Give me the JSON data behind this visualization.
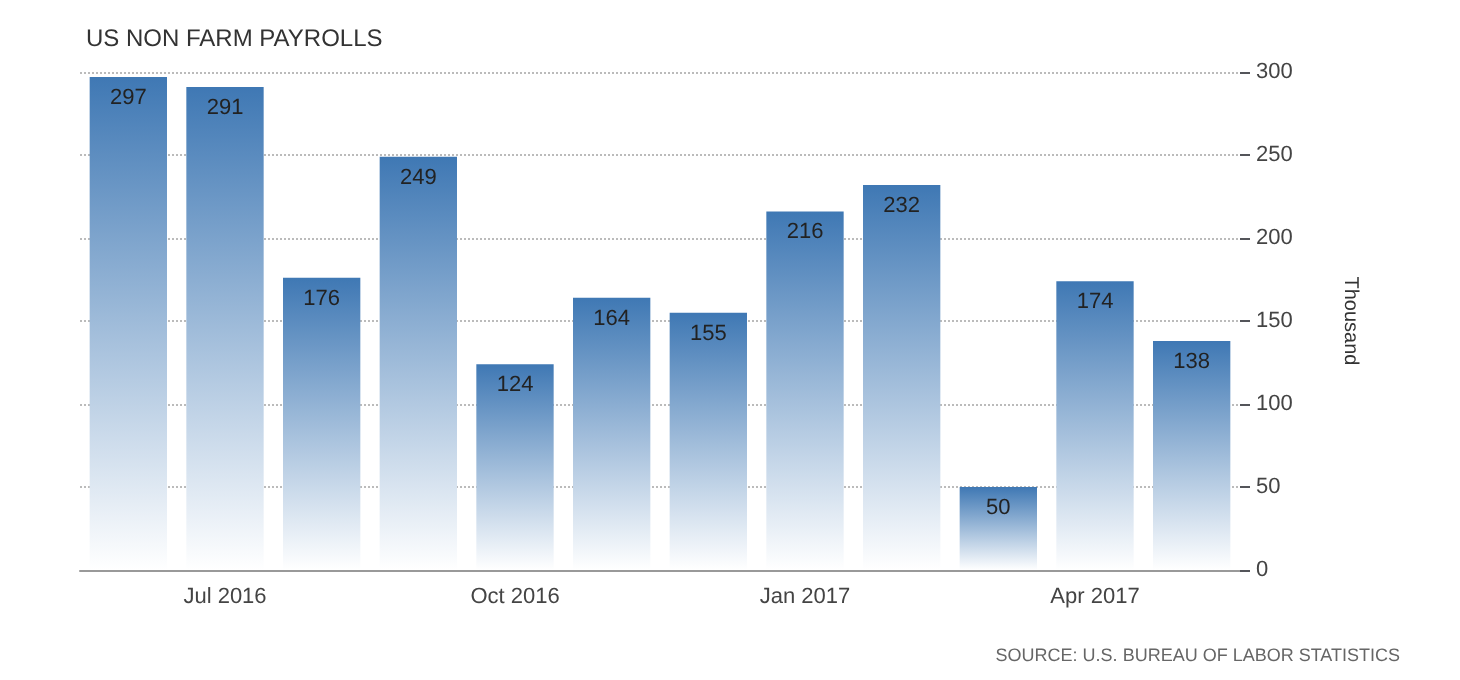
{
  "chart_data": {
    "type": "bar",
    "title": "US NON FARM PAYROLLS",
    "ylabel": "Thousand",
    "categories": [
      null,
      "Jul 2016",
      null,
      null,
      "Oct 2016",
      null,
      null,
      "Jan 2017",
      null,
      null,
      "Apr 2017",
      null
    ],
    "values": [
      297,
      291,
      176,
      249,
      124,
      164,
      155,
      216,
      232,
      50,
      174,
      138
    ],
    "color": "#3f78b4",
    "ylim": [
      0,
      300
    ],
    "yticks": [
      0,
      50,
      100,
      150,
      200,
      250,
      300
    ],
    "grid": "y",
    "data_labels": true,
    "annotations": [
      "SOURCE: U.S. BUREAU OF LABOR STATISTICS"
    ]
  }
}
